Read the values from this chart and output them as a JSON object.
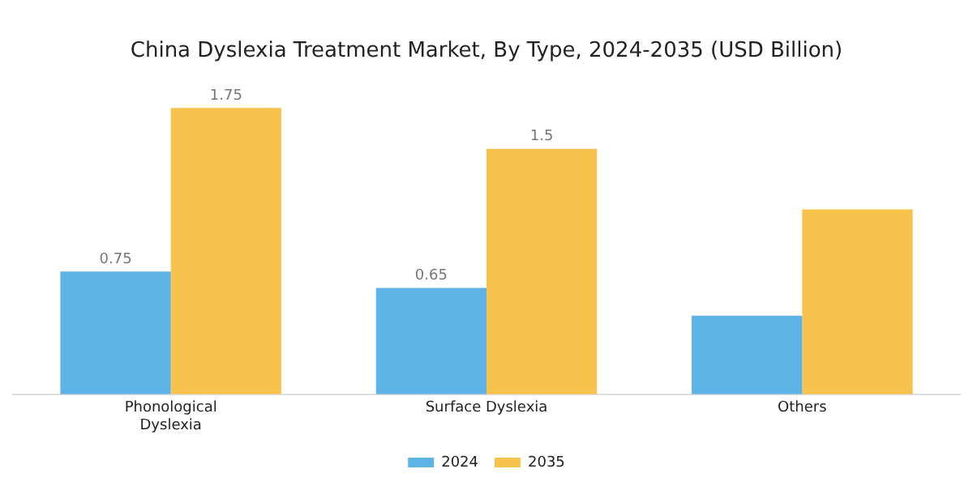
{
  "chart_data": {
    "type": "bar",
    "title": "China Dyslexia Treatment Market, By Type, 2024-2035 (USD Billion)",
    "categories": [
      "Phonological Dyslexia",
      "Surface Dyslexia",
      "Others"
    ],
    "series": [
      {
        "name": "2024",
        "color": "#5db3e6",
        "values": [
          0.75,
          0.65,
          0.48
        ],
        "value_labels": [
          "0.75",
          "0.65",
          null
        ]
      },
      {
        "name": "2035",
        "color": "#f8c34c",
        "values": [
          1.75,
          1.5,
          1.13
        ],
        "value_labels": [
          "1.75",
          "1.5",
          null
        ]
      }
    ],
    "legend": "bottom",
    "grid": false
  }
}
